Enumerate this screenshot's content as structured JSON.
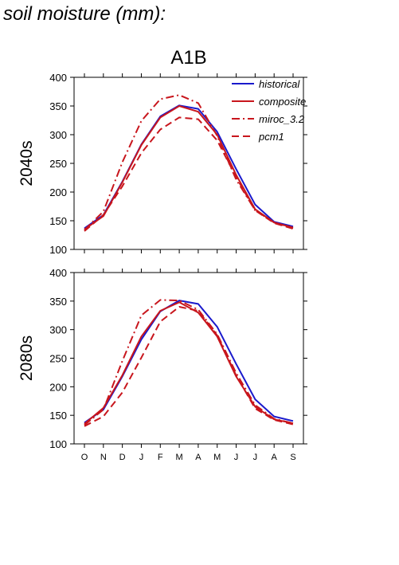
{
  "header": "soil moisture (mm):",
  "chart_data": {
    "type": "line",
    "scenario": "A1B",
    "x": [
      "O",
      "N",
      "D",
      "J",
      "F",
      "M",
      "A",
      "M",
      "J",
      "J",
      "A",
      "S"
    ],
    "ylim": [
      100,
      400
    ],
    "yticks": [
      100,
      150,
      200,
      250,
      300,
      350,
      400
    ],
    "legend": {
      "position": "top-right",
      "panel": 0
    },
    "series_styles": [
      {
        "name": "historical",
        "color": "#1a1acc",
        "dash": ""
      },
      {
        "name": "composite",
        "color": "#c8161d",
        "dash": ""
      },
      {
        "name": "miroc_3.2",
        "color": "#c8161d",
        "dash": "10 4 2 4"
      },
      {
        "name": "pcm1",
        "color": "#c8161d",
        "dash": "9 5"
      }
    ],
    "panels": [
      {
        "label": "2040s",
        "series": [
          {
            "name": "historical",
            "values": [
              137,
              160,
              218,
              283,
              332,
              351,
              345,
              305,
              240,
              178,
              148,
              140
            ]
          },
          {
            "name": "composite",
            "values": [
              135,
              158,
              217,
              282,
              330,
              350,
              340,
              300,
              230,
              170,
              147,
              138
            ]
          },
          {
            "name": "miroc_3.2",
            "values": [
              134,
              166,
              252,
              324,
              362,
              369,
              355,
              298,
              222,
              168,
              147,
              137
            ]
          },
          {
            "name": "pcm1",
            "values": [
              132,
              160,
              210,
              268,
              309,
              330,
              327,
              290,
              226,
              168,
              146,
              136
            ]
          }
        ]
      },
      {
        "label": "2080s",
        "series": [
          {
            "name": "historical",
            "values": [
              137,
              160,
              218,
              283,
              332,
              351,
              345,
              305,
              240,
              178,
              148,
              140
            ]
          },
          {
            "name": "composite",
            "values": [
              135,
              163,
              220,
              288,
              333,
              348,
              330,
              288,
              218,
              165,
              143,
              136
            ]
          },
          {
            "name": "miroc_3.2",
            "values": [
              133,
              160,
              245,
              325,
              352,
              351,
              335,
              292,
              224,
              168,
              144,
              136
            ]
          },
          {
            "name": "pcm1",
            "values": [
              131,
              148,
              190,
              251,
              314,
              340,
              333,
              290,
              220,
              162,
              142,
              134
            ]
          }
        ]
      }
    ]
  }
}
